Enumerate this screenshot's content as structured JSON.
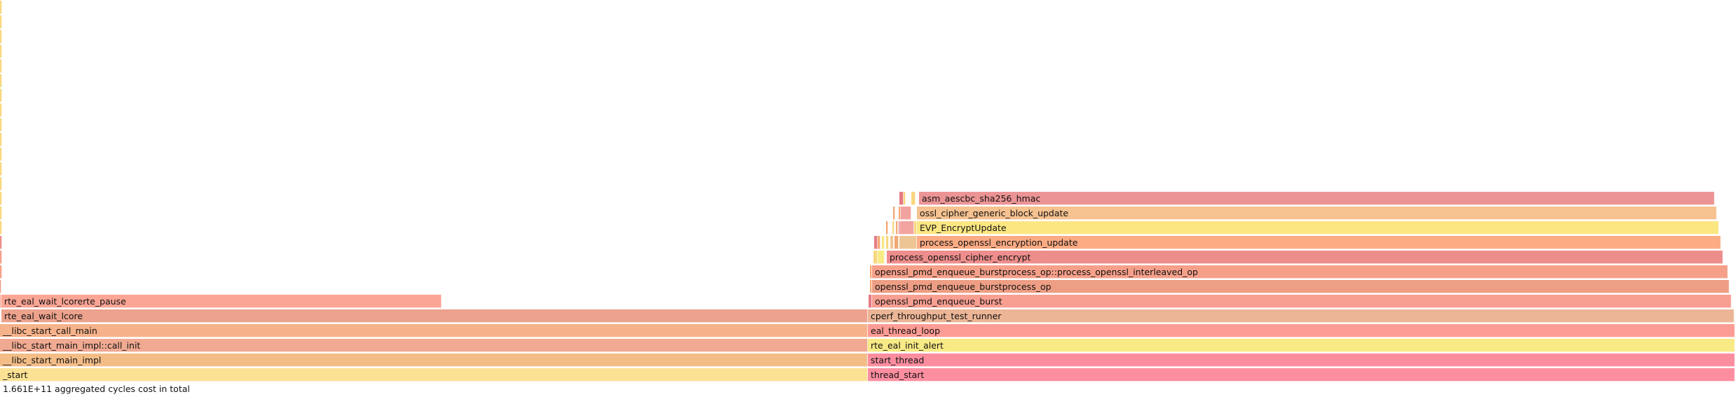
{
  "footer": {
    "total_text": "1.661E+11 aggregated cycles cost in total"
  },
  "palette": {
    "start": "#fbe193",
    "libc_impl": "#f4bd88",
    "libc_init": "#f1aa92",
    "libc_call_main": "#f6b28a",
    "wait_lcore": "#eca28c",
    "wait_pause": "#fba595",
    "thread_start": "#fd8ea0",
    "start_thread": "#fb8d9e",
    "init_alert": "#f8ea85",
    "eal_loop": "#fd9c94",
    "runner": "#ebb596",
    "enqueue_burst": "#f99f92",
    "burstprocess": "#ed9e84",
    "interleaved": "#f6a08a",
    "cipher_encrypt": "#ee8e8c",
    "encryption_update": "#fcab84",
    "evp": "#fbe682",
    "block_update": "#f6c290",
    "hmac": "#ec9495",
    "sliver_yellow": "#f8d77e",
    "sliver_orange": "#f3a774",
    "sliver_red": "#e57b84",
    "sliver_pink": "#f2a3a0",
    "sliver_peach": "#eec695"
  },
  "frames": [
    {
      "name": "_start",
      "row": 0,
      "start": 0,
      "end": 1238,
      "color": "start"
    },
    {
      "name": "__libc_start_main_impl",
      "row": 1,
      "start": 0,
      "end": 1238,
      "color": "libc_impl"
    },
    {
      "name": "__libc_start_main_impl::call_init",
      "row": 2,
      "start": 0,
      "end": 1238,
      "color": "libc_init"
    },
    {
      "name": "__libc_start_call_main",
      "row": 3,
      "start": 0,
      "end": 1238,
      "color": "libc_call_main"
    },
    {
      "name": "rte_eal_wait_lcore",
      "row": 4,
      "start": 2,
      "end": 1238,
      "color": "wait_lcore"
    },
    {
      "name": "rte_eal_wait_lcorerte_pause",
      "row": 5,
      "start": 2,
      "end": 630,
      "color": "wait_pause"
    },
    {
      "name": "thread_start",
      "row": 0,
      "start": 1238,
      "end": 2475,
      "color": "thread_start"
    },
    {
      "name": "start_thread",
      "row": 1,
      "start": 1238,
      "end": 2475,
      "color": "start_thread"
    },
    {
      "name": "rte_eal_init_alert",
      "row": 2,
      "start": 1238,
      "end": 2475,
      "color": "init_alert"
    },
    {
      "name": "eal_thread_loop",
      "row": 3,
      "start": 1238,
      "end": 2475,
      "color": "eal_loop"
    },
    {
      "name": "cperf_throughput_test_runner",
      "row": 4,
      "start": 1238,
      "end": 2474,
      "color": "runner"
    },
    {
      "name": "openssl_pmd_enqueue_burst",
      "row": 5,
      "start": 1244,
      "end": 2470,
      "color": "enqueue_burst"
    },
    {
      "name": "openssl_pmd_enqueue_burstprocess_op",
      "row": 6,
      "start": 1244,
      "end": 2467,
      "color": "burstprocess"
    },
    {
      "name": "openssl_pmd_enqueue_burstprocess_op::process_openssl_interleaved_op",
      "row": 7,
      "start": 1244,
      "end": 2465,
      "color": "interleaved"
    },
    {
      "name": "process_openssl_cipher_encrypt",
      "row": 8,
      "start": 1265,
      "end": 2458,
      "color": "cipher_encrypt"
    },
    {
      "name": "process_openssl_encryption_update",
      "row": 9,
      "start": 1308,
      "end": 2455,
      "color": "encryption_update"
    },
    {
      "name": "EVP_EncryptUpdate",
      "row": 10,
      "start": 1308,
      "end": 2452,
      "color": "evp"
    },
    {
      "name": "ossl_cipher_generic_block_update",
      "row": 11,
      "start": 1308,
      "end": 2449,
      "color": "block_update"
    },
    {
      "name": "asm_aescbc_sha256_hmac",
      "row": 12,
      "start": 1311,
      "end": 2446,
      "color": "hmac"
    },
    {
      "name": "",
      "row": 5,
      "start": 0,
      "end": 2,
      "color": "wait_pause"
    },
    {
      "name": "",
      "row": 6,
      "start": 0,
      "end": 2,
      "color": "burstprocess"
    },
    {
      "name": "",
      "row": 7,
      "start": 0,
      "end": 3,
      "color": "interleaved"
    },
    {
      "name": "",
      "row": 8,
      "start": 0,
      "end": 3,
      "color": "interleaved"
    },
    {
      "name": "",
      "row": 9,
      "start": 0,
      "end": 3,
      "color": "cipher_encrypt"
    },
    {
      "name": "",
      "row": 10,
      "start": 0,
      "end": 3,
      "color": "sliver_yellow"
    },
    {
      "name": "",
      "row": 11,
      "start": 0,
      "end": 3,
      "color": "sliver_yellow"
    },
    {
      "name": "",
      "row": 12,
      "start": 0,
      "end": 3,
      "color": "sliver_yellow"
    },
    {
      "name": "",
      "row": 13,
      "start": 0,
      "end": 3,
      "color": "sliver_yellow"
    },
    {
      "name": "",
      "row": 14,
      "start": 0,
      "end": 3,
      "color": "sliver_yellow"
    },
    {
      "name": "",
      "row": 15,
      "start": 0,
      "end": 3,
      "color": "sliver_yellow"
    },
    {
      "name": "",
      "row": 16,
      "start": 0,
      "end": 3,
      "color": "sliver_yellow"
    },
    {
      "name": "",
      "row": 17,
      "start": 0,
      "end": 3,
      "color": "sliver_yellow"
    },
    {
      "name": "",
      "row": 18,
      "start": 0,
      "end": 3,
      "color": "sliver_yellow"
    },
    {
      "name": "",
      "row": 19,
      "start": 0,
      "end": 3,
      "color": "sliver_yellow"
    },
    {
      "name": "",
      "row": 20,
      "start": 0,
      "end": 3,
      "color": "sliver_yellow"
    },
    {
      "name": "",
      "row": 21,
      "start": 0,
      "end": 3,
      "color": "sliver_yellow"
    },
    {
      "name": "",
      "row": 22,
      "start": 0,
      "end": 3,
      "color": "sliver_yellow"
    },
    {
      "name": "",
      "row": 23,
      "start": 0,
      "end": 3,
      "color": "sliver_yellow"
    },
    {
      "name": "",
      "row": 24,
      "start": 0,
      "end": 3,
      "color": "sliver_yellow"
    },
    {
      "name": "",
      "row": 25,
      "start": 0,
      "end": 3,
      "color": "sliver_yellow"
    },
    {
      "name": "",
      "row": 5,
      "start": 1239,
      "end": 1244,
      "color": "sliver_red"
    },
    {
      "name": "",
      "row": 6,
      "start": 1241,
      "end": 1244,
      "color": "sliver_orange"
    },
    {
      "name": "",
      "row": 7,
      "start": 1241,
      "end": 1244,
      "color": "sliver_orange"
    },
    {
      "name": "",
      "row": 8,
      "start": 1246,
      "end": 1252,
      "color": "sliver_yellow"
    },
    {
      "name": "",
      "row": 8,
      "start": 1252,
      "end": 1262,
      "color": "init_alert"
    },
    {
      "name": "",
      "row": 9,
      "start": 1247,
      "end": 1252,
      "color": "sliver_red"
    },
    {
      "name": "",
      "row": 9,
      "start": 1252,
      "end": 1256,
      "color": "sliver_orange"
    },
    {
      "name": "",
      "row": 9,
      "start": 1258,
      "end": 1262,
      "color": "evp"
    },
    {
      "name": "",
      "row": 9,
      "start": 1264,
      "end": 1268,
      "color": "sliver_yellow"
    },
    {
      "name": "",
      "row": 9,
      "start": 1270,
      "end": 1275,
      "color": "sliver_peach"
    },
    {
      "name": "",
      "row": 9,
      "start": 1276,
      "end": 1282,
      "color": "sliver_orange"
    },
    {
      "name": "",
      "row": 9,
      "start": 1283,
      "end": 1308,
      "color": "sliver_peach"
    },
    {
      "name": "",
      "row": 10,
      "start": 1264,
      "end": 1267,
      "color": "sliver_orange"
    },
    {
      "name": "",
      "row": 10,
      "start": 1273,
      "end": 1276,
      "color": "sliver_yellow"
    },
    {
      "name": "",
      "row": 10,
      "start": 1278,
      "end": 1281,
      "color": "sliver_orange"
    },
    {
      "name": "",
      "row": 10,
      "start": 1282,
      "end": 1284,
      "color": "sliver_red"
    },
    {
      "name": "",
      "row": 10,
      "start": 1284,
      "end": 1304,
      "color": "sliver_pink"
    },
    {
      "name": "",
      "row": 10,
      "start": 1304,
      "end": 1308,
      "color": "sliver_yellow"
    },
    {
      "name": "",
      "row": 11,
      "start": 1274,
      "end": 1277,
      "color": "sliver_orange"
    },
    {
      "name": "",
      "row": 11,
      "start": 1282,
      "end": 1285,
      "color": "sliver_orange"
    },
    {
      "name": "",
      "row": 11,
      "start": 1285,
      "end": 1300,
      "color": "sliver_pink"
    },
    {
      "name": "",
      "row": 12,
      "start": 1283,
      "end": 1289,
      "color": "sliver_red"
    },
    {
      "name": "",
      "row": 12,
      "start": 1289,
      "end": 1292,
      "color": "sliver_yellow"
    },
    {
      "name": "",
      "row": 12,
      "start": 1300,
      "end": 1306,
      "color": "sliver_yellow"
    }
  ]
}
